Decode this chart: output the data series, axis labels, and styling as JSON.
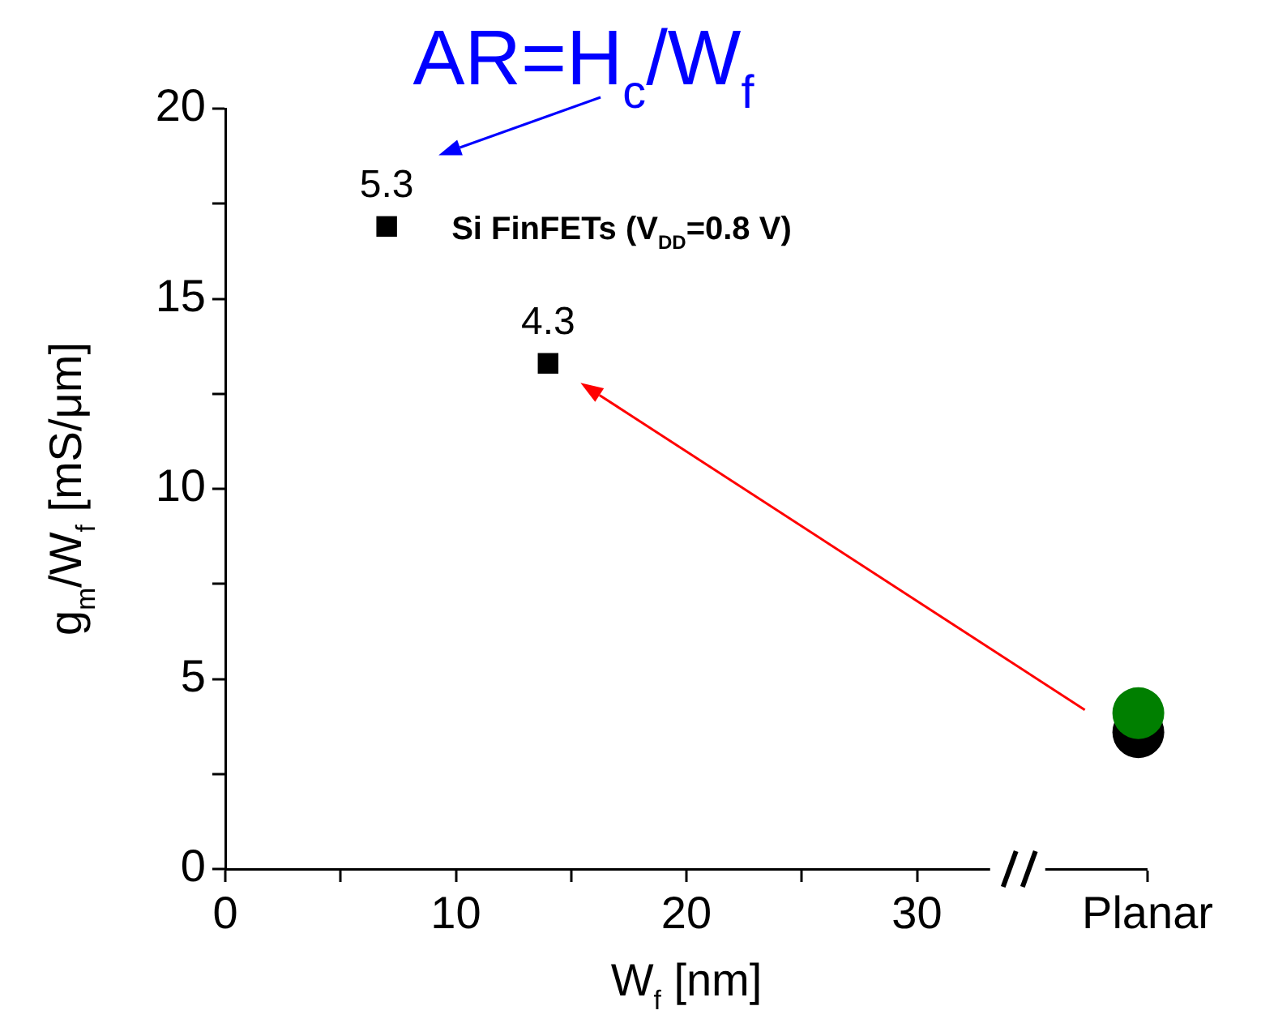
{
  "chart_data": {
    "type": "scatter",
    "xlabel": "W$_{f}$ [nm]",
    "ylabel": "g$_{m}$/W$_{f}$ [mS/μm]",
    "xlim": [
      0,
      40
    ],
    "xticks": [
      0,
      {
        "value": 5,
        "label": null
      },
      10,
      {
        "value": 15,
        "label": null
      },
      20,
      {
        "value": 25,
        "label": null
      },
      30,
      {
        "value": 40,
        "label": "Planar"
      }
    ],
    "ylim": [
      0,
      20
    ],
    "yticks": [
      0,
      {
        "value": 2.5,
        "label": null
      },
      5,
      {
        "value": 7.5,
        "label": null
      },
      10,
      {
        "value": 12.5,
        "label": null
      },
      15,
      {
        "value": 17.5,
        "label": null
      },
      20
    ],
    "series": [
      {
        "name": "Si FinFETs (V$_{DD}$=0.8 V)",
        "color": "#000000",
        "marker": "square",
        "x": [
          7,
          14
        ],
        "values": [
          16.9,
          13.3
        ]
      },
      {
        "color": "#000000",
        "marker": "circle",
        "x": [
          39.6
        ],
        "values": [
          3.6
        ]
      },
      {
        "color": "#007f00",
        "marker": "circle",
        "x": [
          39.6
        ],
        "values": [
          4.1
        ]
      }
    ],
    "annotations": [
      "AR=H$_{c}$/W$_{f}$",
      {
        "text": "5.3",
        "x": 7,
        "y": 16.9
      },
      {
        "text": "4.3",
        "x": 14,
        "y": 13.3
      }
    ],
    "grid": false
  }
}
